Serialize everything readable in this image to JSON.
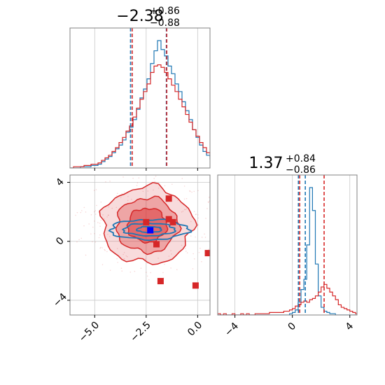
{
  "colors": {
    "blue": "#1f77b4",
    "red": "#d62728",
    "grid": "#c8c8c8",
    "frame": "#808080"
  },
  "chart_data": [
    {
      "type": "histogram",
      "panel": "top-left",
      "title": {
        "main": "−2.38",
        "sup": "+0.86",
        "sub": "−0.88"
      },
      "xlim": [
        -6.2,
        0.6
      ],
      "grid": true,
      "bins": {
        "start": -6.2,
        "width": 0.17
      },
      "series": [
        {
          "color": "#1f77b4",
          "counts": [
            0,
            0,
            0,
            1,
            1,
            1,
            2,
            2,
            3,
            5,
            7,
            9,
            12,
            15,
            18,
            22,
            28,
            32,
            38,
            46,
            55,
            62,
            70,
            82,
            92,
            100,
            93,
            88,
            80,
            74,
            66,
            60,
            52,
            45,
            38,
            30,
            24,
            18,
            13,
            10,
            7,
            5,
            4,
            3,
            2,
            1,
            1,
            0,
            0,
            0
          ]
        },
        {
          "color": "#d62728",
          "counts": [
            0,
            1,
            1,
            1,
            2,
            2,
            3,
            3,
            4,
            6,
            8,
            10,
            13,
            16,
            20,
            24,
            29,
            33,
            40,
            47,
            54,
            60,
            66,
            75,
            80,
            81,
            79,
            75,
            70,
            65,
            60,
            54,
            48,
            42,
            36,
            30,
            25,
            20,
            16,
            12,
            9,
            7,
            5,
            4,
            3,
            2,
            2,
            1,
            1,
            1
          ]
        }
      ],
      "quantiles": [
        {
          "color": "#1f77b4",
          "values": [
            -3.26,
            -1.52
          ]
        },
        {
          "color": "#d62728",
          "values": [
            -3.18,
            -1.5
          ]
        }
      ]
    },
    {
      "type": "histogram",
      "panel": "bottom-right",
      "title": {
        "main": "1.37",
        "sup": "+0.84",
        "sub": "−0.86"
      },
      "xlim": [
        -5.2,
        4.5
      ],
      "xticks": [
        -4,
        0,
        4
      ],
      "xtick_labels": [
        "−4",
        "0",
        "4"
      ],
      "grid": true,
      "bins": {
        "start": -5.2,
        "width": 0.2
      },
      "series": [
        {
          "color": "#1f77b4",
          "counts": [
            0,
            0,
            0,
            0,
            0,
            0,
            0,
            0,
            0,
            0,
            0,
            0,
            0,
            0,
            0,
            0,
            0,
            0,
            0,
            0,
            0,
            0,
            0,
            0,
            0,
            1,
            2,
            4,
            10,
            20,
            28,
            55,
            100,
            82,
            40,
            15,
            6,
            3,
            2,
            1,
            1,
            0,
            0,
            0,
            0,
            0,
            0,
            0,
            0
          ]
        },
        {
          "color": "#d62728",
          "counts": [
            1,
            0,
            1,
            0,
            0,
            1,
            0,
            0,
            1,
            0,
            1,
            0,
            0,
            1,
            1,
            1,
            1,
            1,
            2,
            2,
            2,
            2,
            2,
            3,
            3,
            4,
            5,
            7,
            8,
            10,
            11,
            10,
            12,
            13,
            15,
            18,
            22,
            24,
            21,
            18,
            15,
            12,
            8,
            6,
            5,
            4,
            3,
            2,
            1
          ]
        }
      ],
      "quantiles": [
        {
          "color": "#1f77b4",
          "values": [
            0.42,
            0.9
          ]
        },
        {
          "color": "#d62728",
          "values": [
            0.51,
            2.21
          ]
        }
      ]
    },
    {
      "type": "scatter",
      "panel": "bottom-left",
      "xlim": [
        -6.2,
        0.6
      ],
      "ylim": [
        -5.0,
        4.5
      ],
      "xticks": [
        -5.0,
        -2.5,
        0.0
      ],
      "xtick_labels": [
        "−5.0",
        "−2.5",
        "0.0"
      ],
      "yticks": [
        -4,
        0,
        4
      ],
      "ytick_labels": [
        "−4",
        "0",
        "4"
      ],
      "grid": true,
      "series": [
        {
          "name": "",
          "color": "#d62728",
          "marker": "square",
          "points": [
            [
              -1.4,
              2.9
            ],
            [
              -1.4,
              1.5
            ],
            [
              -1.2,
              1.3
            ],
            [
              -2.5,
              1.3
            ],
            [
              -2.0,
              -0.2
            ],
            [
              -1.8,
              -2.7
            ],
            [
              -0.1,
              -3.0
            ],
            [
              0.5,
              -0.8
            ]
          ]
        },
        {
          "name": "",
          "color": "#0000ff",
          "marker": "square",
          "points": [
            [
              -2.3,
              0.75
            ]
          ]
        }
      ],
      "contours": [
        {
          "color": "#d62728",
          "filled": true,
          "center": [
            -2.45,
            1.1
          ],
          "levels": [
            {
              "rx": 2.2,
              "ry": 2.6
            },
            {
              "rx": 1.5,
              "ry": 1.85
            },
            {
              "rx": 0.95,
              "ry": 1.15
            }
          ]
        },
        {
          "color": "#1f77b4",
          "filled": false,
          "center": [
            -2.35,
            0.8
          ],
          "levels": [
            {
              "rx": 1.9,
              "ry": 0.68
            },
            {
              "rx": 1.25,
              "ry": 0.42
            },
            {
              "rx": 0.6,
              "ry": 0.2
            }
          ]
        }
      ]
    }
  ]
}
